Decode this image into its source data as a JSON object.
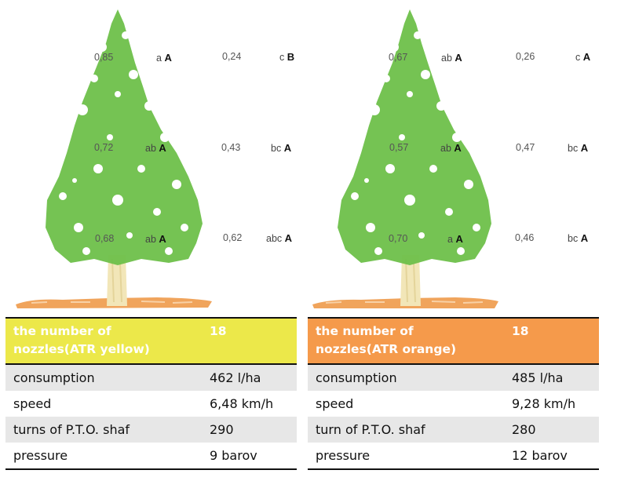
{
  "colors": {
    "yellow_header": "#ece84a",
    "orange_header": "#f59a4b",
    "foliage": "#6ec04a",
    "trunk": "#f2e6b8",
    "ground": "#f0a45c"
  },
  "left_tree": {
    "levels": [
      {
        "value": "0,85",
        "letters_low": "a",
        "letters_up": "A",
        "value2": "0,24",
        "letters2_low": "c",
        "letters2_up": "B"
      },
      {
        "value": "0,72",
        "letters_low": "ab",
        "letters_up": "A",
        "value2": "0,43",
        "letters2_low": "bc",
        "letters2_up": "A"
      },
      {
        "value": "0,68",
        "letters_low": "ab",
        "letters_up": "A",
        "value2": "0,62",
        "letters2_low": "abc",
        "letters2_up": "A"
      }
    ]
  },
  "right_tree": {
    "levels": [
      {
        "value": "0,67",
        "letters_low": "ab",
        "letters_up": "A",
        "value2": "0,26",
        "letters2_low": "c",
        "letters2_up": "A"
      },
      {
        "value": "0,57",
        "letters_low": "ab",
        "letters_up": "A",
        "value2": "0,47",
        "letters2_low": "bc",
        "letters2_up": "A"
      },
      {
        "value": "0,70",
        "letters_low": "a",
        "letters_up": "A",
        "value2": "0,46",
        "letters2_low": "bc",
        "letters2_up": "A"
      }
    ]
  },
  "left_table": {
    "header": {
      "label": "the number of nozzles(ATR yellow)",
      "value": "18"
    },
    "rows": [
      {
        "label": "consumption",
        "value": "462 l/ha"
      },
      {
        "label": "speed",
        "value": "6,48 km/h"
      },
      {
        "label": "turns of P.T.O. shaf",
        "value": "290"
      },
      {
        "label": "pressure",
        "value": "9 barov"
      }
    ]
  },
  "right_table": {
    "header": {
      "label": "the number of nozzles(ATR orange)",
      "value": "18"
    },
    "rows": [
      {
        "label": "consumption",
        "value": "485 l/ha"
      },
      {
        "label": "speed",
        "value": "9,28 km/h"
      },
      {
        "label": "turn of P.T.O. shaf",
        "value": "280"
      },
      {
        "label": "pressure",
        "value": "12 barov"
      }
    ]
  }
}
